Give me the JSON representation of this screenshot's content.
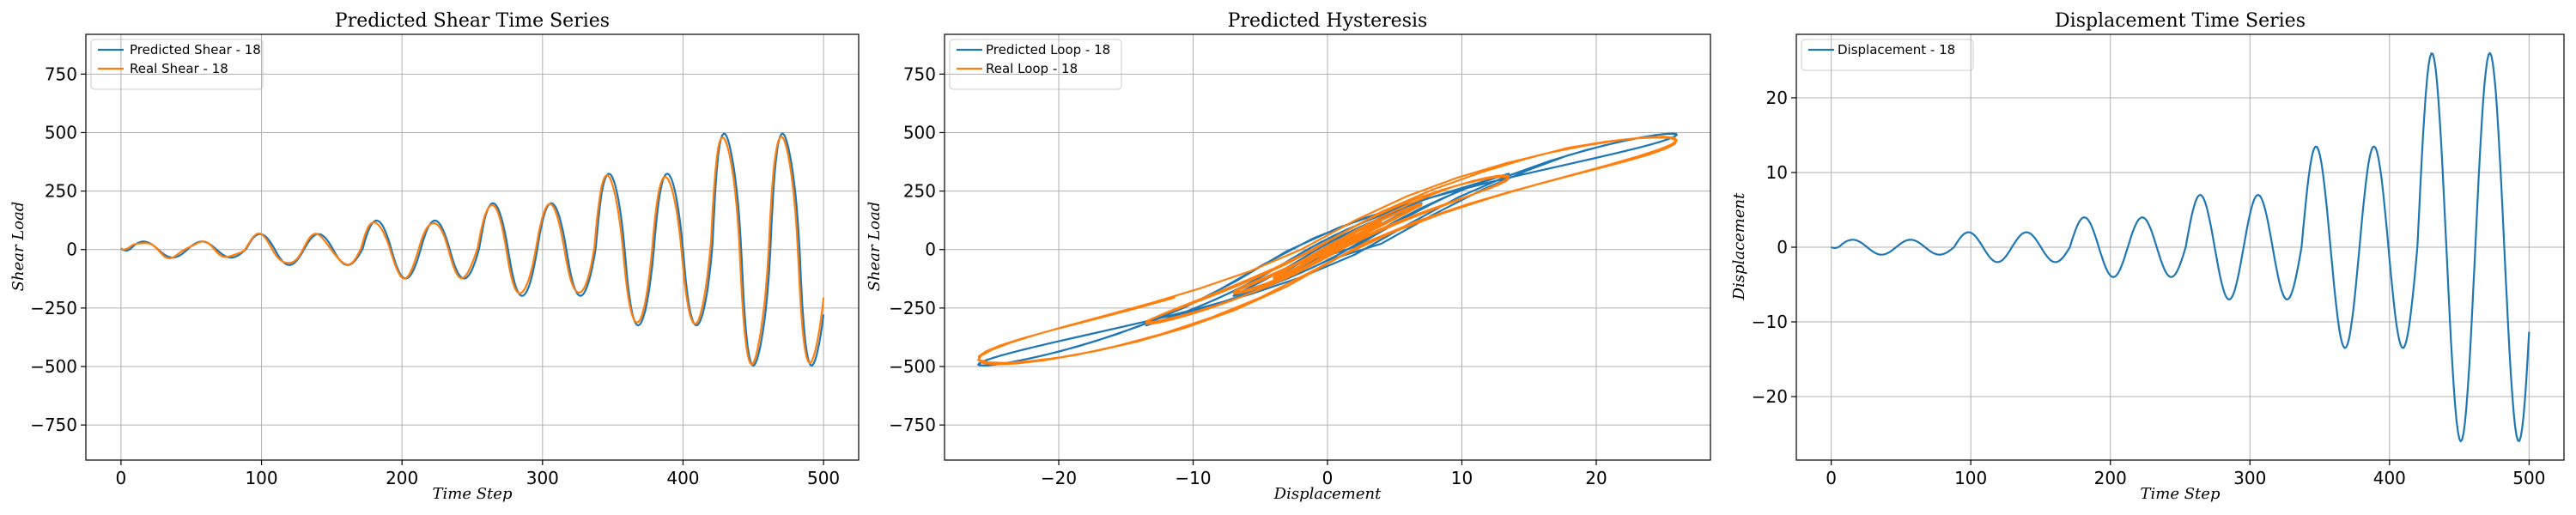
{
  "colors": {
    "blue": "#1f77b4",
    "orange": "#ff7f0e"
  },
  "chart_data": [
    {
      "type": "line",
      "title": "Predicted Shear Time Series",
      "xlabel": "Time Step",
      "ylabel": "Shear Load",
      "xlim": [
        -25,
        525
      ],
      "ylim": [
        -900,
        920
      ],
      "xticks": [
        0,
        100,
        200,
        300,
        400,
        500
      ],
      "yticks": [
        -750,
        -500,
        -250,
        0,
        250,
        500,
        750
      ],
      "grid": true,
      "legend": "top-left",
      "series": [
        {
          "name": "Predicted Shear - 18",
          "color": "blue",
          "model": "shear-pred"
        },
        {
          "name": "Real Shear - 18",
          "color": "orange",
          "model": "shear-real"
        }
      ]
    },
    {
      "type": "line",
      "title": "Predicted Hysteresis",
      "xlabel": "Displacement",
      "ylabel": "Shear Load",
      "xlim": [
        -28.5,
        28.5
      ],
      "ylim": [
        -900,
        920
      ],
      "xticks": [
        -20,
        -10,
        0,
        10,
        20
      ],
      "yticks": [
        -750,
        -500,
        -250,
        0,
        250,
        500,
        750
      ],
      "grid": true,
      "legend": "top-left",
      "series": [
        {
          "name": "Predicted Loop - 18",
          "color": "blue",
          "model": "loop-pred"
        },
        {
          "name": "Real Loop - 18",
          "color": "orange",
          "model": "loop-real"
        }
      ]
    },
    {
      "type": "line",
      "title": "Displacement Time Series",
      "xlabel": "Time Step",
      "ylabel": "Displacement",
      "xlim": [
        -25,
        525
      ],
      "ylim": [
        -28.5,
        28.5
      ],
      "xticks": [
        0,
        100,
        200,
        300,
        400,
        500
      ],
      "yticks": [
        -20,
        -10,
        0,
        10,
        20
      ],
      "grid": true,
      "legend": "top-left",
      "series": [
        {
          "name": "Displacement - 18",
          "color": "blue",
          "model": "disp"
        }
      ]
    }
  ]
}
